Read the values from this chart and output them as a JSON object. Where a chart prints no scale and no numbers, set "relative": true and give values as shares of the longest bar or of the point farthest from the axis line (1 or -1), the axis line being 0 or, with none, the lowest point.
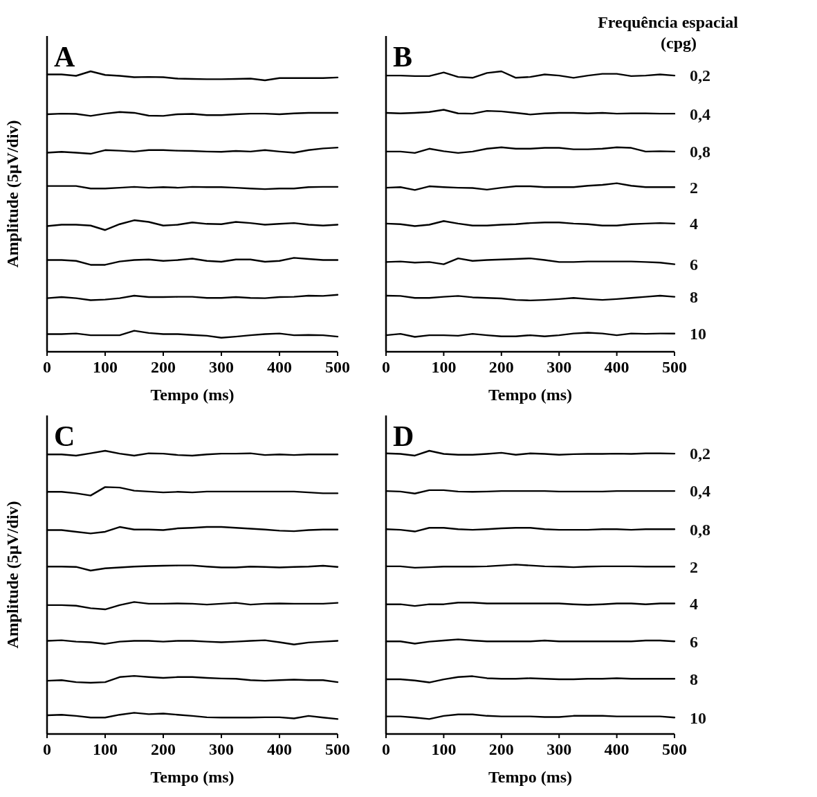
{
  "chart_data": [
    {
      "type": "line",
      "title": "A",
      "xlabel": "Tempo (ms)",
      "ylabel": "Amplitude (5µV/div)",
      "relative": true,
      "xlim": [
        0,
        500
      ],
      "xticks": [
        0,
        100,
        200,
        300,
        400,
        500
      ],
      "x": [
        0,
        25,
        50,
        75,
        100,
        125,
        150,
        175,
        200,
        225,
        250,
        275,
        300,
        325,
        350,
        375,
        400,
        425,
        450,
        475,
        500
      ],
      "series": [
        {
          "color": "#000000",
          "values": [
            0.989,
            0.989,
            0.984,
            1,
            0.987,
            0.984,
            0.979,
            0.98,
            0.979,
            0.974,
            0.973,
            0.972,
            0.972,
            0.973,
            0.974,
            0.968,
            0.976,
            0.976,
            0.976,
            0.976,
            0.978
          ]
        },
        {
          "color": "#000000",
          "values": [
            0.847,
            0.849,
            0.848,
            0.841,
            0.849,
            0.855,
            0.852,
            0.842,
            0.841,
            0.847,
            0.848,
            0.844,
            0.844,
            0.847,
            0.849,
            0.849,
            0.847,
            0.85,
            0.852,
            0.852,
            0.852
          ]
        },
        {
          "color": "#000000",
          "values": [
            0.71,
            0.713,
            0.71,
            0.706,
            0.719,
            0.717,
            0.714,
            0.719,
            0.719,
            0.717,
            0.716,
            0.714,
            0.713,
            0.716,
            0.714,
            0.719,
            0.714,
            0.71,
            0.719,
            0.725,
            0.728
          ]
        },
        {
          "color": "#000000",
          "values": [
            0.591,
            0.591,
            0.591,
            0.582,
            0.582,
            0.585,
            0.588,
            0.585,
            0.587,
            0.585,
            0.588,
            0.587,
            0.587,
            0.585,
            0.582,
            0.58,
            0.582,
            0.582,
            0.587,
            0.588,
            0.588
          ]
        },
        {
          "color": "#000000",
          "values": [
            0.448,
            0.453,
            0.453,
            0.45,
            0.434,
            0.455,
            0.469,
            0.463,
            0.45,
            0.453,
            0.461,
            0.456,
            0.455,
            0.463,
            0.459,
            0.453,
            0.456,
            0.459,
            0.453,
            0.45,
            0.453
          ]
        },
        {
          "color": "#000000",
          "values": [
            0.327,
            0.327,
            0.324,
            0.31,
            0.31,
            0.322,
            0.327,
            0.329,
            0.324,
            0.327,
            0.332,
            0.324,
            0.321,
            0.329,
            0.329,
            0.321,
            0.324,
            0.335,
            0.331,
            0.327,
            0.327
          ]
        },
        {
          "color": "#000000",
          "values": [
            0.191,
            0.195,
            0.191,
            0.184,
            0.186,
            0.191,
            0.2,
            0.195,
            0.195,
            0.196,
            0.196,
            0.192,
            0.192,
            0.195,
            0.192,
            0.191,
            0.195,
            0.196,
            0.2,
            0.199,
            0.203
          ]
        },
        {
          "color": "#000000",
          "values": [
            0.063,
            0.063,
            0.065,
            0.059,
            0.059,
            0.059,
            0.075,
            0.067,
            0.063,
            0.063,
            0.06,
            0.057,
            0.05,
            0.054,
            0.059,
            0.063,
            0.065,
            0.059,
            0.06,
            0.059,
            0.054
          ]
        }
      ]
    },
    {
      "type": "line",
      "title": "B",
      "xlabel": "Tempo (ms)",
      "legend_title": "Frequência espacial\n(cpg)",
      "relative": true,
      "xlim": [
        0,
        500
      ],
      "xticks": [
        0,
        100,
        200,
        300,
        400,
        500
      ],
      "x": [
        0,
        25,
        50,
        75,
        100,
        125,
        150,
        175,
        200,
        225,
        250,
        275,
        300,
        325,
        350,
        375,
        400,
        425,
        450,
        475,
        500
      ],
      "series": [
        {
          "name": "0,2",
          "color": "#000000",
          "values": [
            0.985,
            0.985,
            0.983,
            0.983,
            0.996,
            0.98,
            0.977,
            0.994,
            1,
            0.977,
            0.98,
            0.989,
            0.985,
            0.977,
            0.985,
            0.991,
            0.991,
            0.983,
            0.985,
            0.989,
            0.985
          ]
        },
        {
          "name": "0,4",
          "color": "#000000",
          "values": [
            0.852,
            0.85,
            0.852,
            0.855,
            0.863,
            0.85,
            0.849,
            0.859,
            0.857,
            0.852,
            0.846,
            0.85,
            0.852,
            0.852,
            0.85,
            0.852,
            0.849,
            0.85,
            0.85,
            0.849,
            0.849
          ]
        },
        {
          "name": "0,8",
          "color": "#000000",
          "values": [
            0.714,
            0.714,
            0.709,
            0.724,
            0.715,
            0.709,
            0.714,
            0.724,
            0.729,
            0.724,
            0.724,
            0.727,
            0.727,
            0.722,
            0.722,
            0.724,
            0.729,
            0.727,
            0.714,
            0.715,
            0.714
          ]
        },
        {
          "name": "2",
          "color": "#000000",
          "values": [
            0.585,
            0.587,
            0.577,
            0.59,
            0.587,
            0.585,
            0.584,
            0.578,
            0.585,
            0.59,
            0.59,
            0.587,
            0.587,
            0.587,
            0.592,
            0.595,
            0.601,
            0.592,
            0.587,
            0.587,
            0.587
          ]
        },
        {
          "name": "4",
          "color": "#000000",
          "values": [
            0.457,
            0.455,
            0.448,
            0.453,
            0.466,
            0.457,
            0.45,
            0.45,
            0.453,
            0.455,
            0.459,
            0.461,
            0.461,
            0.457,
            0.455,
            0.45,
            0.45,
            0.455,
            0.457,
            0.459,
            0.457
          ]
        },
        {
          "name": "6",
          "color": "#000000",
          "values": [
            0.32,
            0.322,
            0.318,
            0.32,
            0.312,
            0.333,
            0.324,
            0.327,
            0.329,
            0.331,
            0.333,
            0.327,
            0.32,
            0.32,
            0.322,
            0.322,
            0.322,
            0.322,
            0.32,
            0.318,
            0.312
          ]
        },
        {
          "name": "8",
          "color": "#000000",
          "values": [
            0.2,
            0.199,
            0.192,
            0.192,
            0.196,
            0.199,
            0.194,
            0.192,
            0.19,
            0.185,
            0.183,
            0.185,
            0.188,
            0.192,
            0.188,
            0.185,
            0.188,
            0.192,
            0.196,
            0.2,
            0.196
          ]
        },
        {
          "name": "10",
          "color": "#000000",
          "values": [
            0.059,
            0.064,
            0.053,
            0.059,
            0.059,
            0.057,
            0.064,
            0.059,
            0.055,
            0.055,
            0.059,
            0.055,
            0.059,
            0.065,
            0.068,
            0.065,
            0.059,
            0.065,
            0.064,
            0.065,
            0.065
          ]
        }
      ]
    },
    {
      "type": "line",
      "title": "C",
      "xlabel": "Tempo (ms)",
      "ylabel": "Amplitude (5µV/div)",
      "relative": true,
      "xlim": [
        0,
        500
      ],
      "xticks": [
        0,
        100,
        200,
        300,
        400,
        500
      ],
      "x": [
        0,
        25,
        50,
        75,
        100,
        125,
        150,
        175,
        200,
        225,
        250,
        275,
        300,
        325,
        350,
        375,
        400,
        425,
        450,
        475,
        500
      ],
      "series": [
        {
          "color": "#000000",
          "values": [
            0.987,
            0.987,
            0.983,
            0.991,
            1,
            0.99,
            0.983,
            0.991,
            0.99,
            0.985,
            0.983,
            0.987,
            0.99,
            0.99,
            0.991,
            0.985,
            0.987,
            0.985,
            0.987,
            0.987,
            0.987
          ]
        },
        {
          "color": "#000000",
          "values": [
            0.855,
            0.855,
            0.85,
            0.842,
            0.872,
            0.87,
            0.859,
            0.856,
            0.853,
            0.855,
            0.853,
            0.856,
            0.856,
            0.856,
            0.856,
            0.856,
            0.856,
            0.856,
            0.853,
            0.85,
            0.85
          ]
        },
        {
          "color": "#000000",
          "values": [
            0.72,
            0.72,
            0.714,
            0.708,
            0.714,
            0.731,
            0.722,
            0.722,
            0.72,
            0.726,
            0.728,
            0.731,
            0.731,
            0.728,
            0.725,
            0.722,
            0.718,
            0.716,
            0.72,
            0.722,
            0.722
          ]
        },
        {
          "color": "#000000",
          "values": [
            0.591,
            0.591,
            0.59,
            0.577,
            0.585,
            0.588,
            0.591,
            0.593,
            0.594,
            0.595,
            0.595,
            0.591,
            0.588,
            0.588,
            0.591,
            0.59,
            0.588,
            0.59,
            0.591,
            0.594,
            0.59
          ]
        },
        {
          "color": "#000000",
          "values": [
            0.455,
            0.455,
            0.453,
            0.444,
            0.44,
            0.455,
            0.466,
            0.46,
            0.46,
            0.461,
            0.46,
            0.457,
            0.46,
            0.463,
            0.457,
            0.46,
            0.461,
            0.46,
            0.46,
            0.46,
            0.463
          ]
        },
        {
          "color": "#000000",
          "values": [
            0.329,
            0.331,
            0.326,
            0.324,
            0.318,
            0.326,
            0.329,
            0.329,
            0.326,
            0.329,
            0.329,
            0.326,
            0.324,
            0.326,
            0.329,
            0.331,
            0.324,
            0.316,
            0.323,
            0.326,
            0.329
          ]
        },
        {
          "color": "#000000",
          "values": [
            0.188,
            0.19,
            0.183,
            0.181,
            0.183,
            0.201,
            0.205,
            0.201,
            0.198,
            0.201,
            0.201,
            0.198,
            0.196,
            0.195,
            0.19,
            0.188,
            0.19,
            0.192,
            0.19,
            0.19,
            0.183
          ]
        },
        {
          "color": "#000000",
          "values": [
            0.066,
            0.068,
            0.064,
            0.058,
            0.058,
            0.068,
            0.075,
            0.07,
            0.072,
            0.068,
            0.064,
            0.059,
            0.058,
            0.058,
            0.058,
            0.059,
            0.059,
            0.055,
            0.064,
            0.058,
            0.053
          ]
        }
      ]
    },
    {
      "type": "line",
      "title": "D",
      "xlabel": "Tempo (ms)",
      "relative": true,
      "xlim": [
        0,
        500
      ],
      "xticks": [
        0,
        100,
        200,
        300,
        400,
        500
      ],
      "x": [
        0,
        25,
        50,
        75,
        100,
        125,
        150,
        175,
        200,
        225,
        250,
        275,
        300,
        325,
        350,
        375,
        400,
        425,
        450,
        475,
        500
      ],
      "series": [
        {
          "name": "0,2",
          "color": "#000000",
          "values": [
            0.991,
            0.989,
            0.983,
            1,
            0.989,
            0.986,
            0.986,
            0.989,
            0.993,
            0.986,
            0.991,
            0.989,
            0.986,
            0.988,
            0.989,
            0.989,
            0.99,
            0.989,
            0.991,
            0.991,
            0.99
          ]
        },
        {
          "name": "0,4",
          "color": "#000000",
          "values": [
            0.858,
            0.856,
            0.849,
            0.861,
            0.861,
            0.856,
            0.855,
            0.856,
            0.858,
            0.858,
            0.858,
            0.858,
            0.856,
            0.856,
            0.856,
            0.856,
            0.858,
            0.858,
            0.858,
            0.858,
            0.858
          ]
        },
        {
          "name": "0,8",
          "color": "#000000",
          "values": [
            0.723,
            0.721,
            0.715,
            0.728,
            0.728,
            0.723,
            0.721,
            0.723,
            0.726,
            0.728,
            0.728,
            0.723,
            0.721,
            0.721,
            0.721,
            0.723,
            0.723,
            0.721,
            0.723,
            0.723,
            0.723
          ]
        },
        {
          "name": "2",
          "color": "#000000",
          "values": [
            0.592,
            0.592,
            0.587,
            0.589,
            0.591,
            0.591,
            0.591,
            0.592,
            0.595,
            0.598,
            0.595,
            0.592,
            0.591,
            0.589,
            0.591,
            0.592,
            0.592,
            0.592,
            0.591,
            0.591,
            0.591
          ]
        },
        {
          "name": "4",
          "color": "#000000",
          "values": [
            0.458,
            0.458,
            0.452,
            0.458,
            0.458,
            0.464,
            0.464,
            0.461,
            0.461,
            0.461,
            0.461,
            0.461,
            0.461,
            0.458,
            0.456,
            0.458,
            0.461,
            0.461,
            0.458,
            0.461,
            0.461
          ]
        },
        {
          "name": "6",
          "color": "#000000",
          "values": [
            0.327,
            0.327,
            0.319,
            0.326,
            0.33,
            0.334,
            0.33,
            0.327,
            0.327,
            0.327,
            0.327,
            0.33,
            0.327,
            0.327,
            0.327,
            0.327,
            0.327,
            0.327,
            0.33,
            0.33,
            0.327
          ]
        },
        {
          "name": "8",
          "color": "#000000",
          "values": [
            0.193,
            0.193,
            0.189,
            0.182,
            0.193,
            0.201,
            0.204,
            0.197,
            0.195,
            0.195,
            0.197,
            0.195,
            0.193,
            0.193,
            0.195,
            0.195,
            0.197,
            0.195,
            0.195,
            0.195,
            0.195
          ]
        },
        {
          "name": "10",
          "color": "#000000",
          "values": [
            0.062,
            0.062,
            0.058,
            0.053,
            0.064,
            0.069,
            0.069,
            0.064,
            0.062,
            0.062,
            0.062,
            0.06,
            0.06,
            0.064,
            0.064,
            0.064,
            0.062,
            0.062,
            0.062,
            0.062,
            0.058
          ]
        }
      ]
    }
  ]
}
